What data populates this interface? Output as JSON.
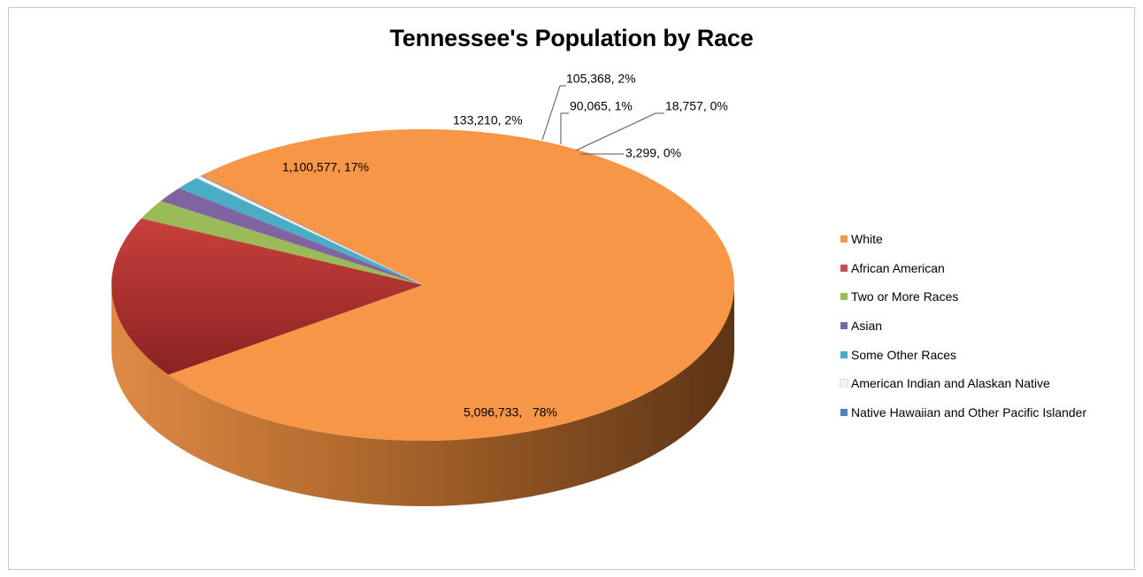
{
  "chart_data": {
    "type": "pie",
    "title": "Tennessee's Population by Race",
    "categories": [
      "White",
      "African American",
      "Two or More Races",
      "Asian",
      "Some Other Races",
      "American Indian and Alaskan Native",
      "Native Hawaiian and Other Pacific Islander"
    ],
    "values": [
      5096733,
      1100577,
      133210,
      105368,
      90065,
      18757,
      3299
    ],
    "percent_labels": [
      "78%",
      "17%",
      "2%",
      "2%",
      "1%",
      "0%",
      "0%"
    ],
    "data_labels": [
      "5,096,733,   78%",
      "1,100,577, 17%",
      "133,210, 2%",
      "105,368, 2%",
      "90,065, 1%",
      "18,757, 0%",
      "3,299, 0%"
    ],
    "colors": [
      "#F79646",
      "#C0504D",
      "#9BBB59",
      "#8064A2",
      "#4BACC6",
      "#F2F2F2",
      "#4F81BD"
    ],
    "legend_position": "right",
    "style": "3d-pie"
  }
}
